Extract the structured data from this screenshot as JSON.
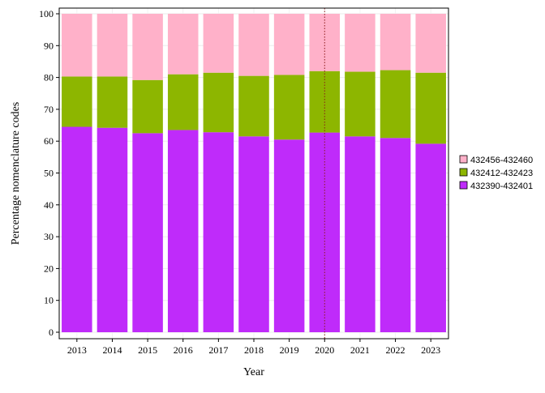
{
  "chart_data": {
    "type": "bar",
    "stacked": true,
    "categories": [
      "2013",
      "2014",
      "2015",
      "2016",
      "2017",
      "2018",
      "2019",
      "2020",
      "2021",
      "2022",
      "2023"
    ],
    "series": [
      {
        "name": "432390-432401",
        "color": "#bf2bfa",
        "values": [
          64.5,
          64.2,
          62.5,
          63.5,
          62.8,
          61.5,
          60.5,
          62.7,
          61.5,
          61.0,
          59.2
        ]
      },
      {
        "name": "432412-432423",
        "color": "#8db600",
        "values": [
          15.8,
          16.1,
          16.7,
          17.5,
          18.7,
          19.0,
          20.3,
          19.3,
          20.3,
          21.3,
          22.3
        ]
      },
      {
        "name": "432456-432460",
        "color": "#ffb1c9",
        "values": [
          19.7,
          19.7,
          20.8,
          19.0,
          18.5,
          19.5,
          19.2,
          18.0,
          18.2,
          17.7,
          18.5
        ]
      }
    ],
    "xlabel": "Year",
    "ylabel": "Percentage nomenclature codes",
    "ylim": [
      0,
      100
    ],
    "yticks": [
      0,
      10,
      20,
      30,
      40,
      50,
      60,
      70,
      80,
      90,
      100
    ],
    "reference_line": {
      "x": "2020",
      "color": "#8b1a1a",
      "style": "dotted"
    },
    "grid": true,
    "legend_position": "right"
  }
}
